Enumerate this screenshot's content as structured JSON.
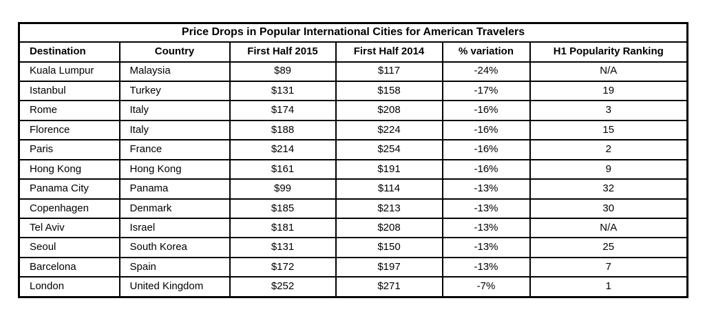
{
  "colors": {
    "background": "#ffffff",
    "border": "#000000",
    "text": "#000000"
  },
  "chart_data": {
    "type": "table",
    "title": "Price Drops in Popular International Cities for American Travelers",
    "columns": [
      "Destination",
      "Country",
      "First Half 2015",
      "First Half 2014",
      "% variation",
      "H1 Popularity Ranking"
    ],
    "rows": [
      [
        "Kuala Lumpur",
        "Malaysia",
        "$89",
        "$117",
        "-24%",
        "N/A"
      ],
      [
        "Istanbul",
        "Turkey",
        "$131",
        "$158",
        "-17%",
        "19"
      ],
      [
        "Rome",
        "Italy",
        "$174",
        "$208",
        "-16%",
        "3"
      ],
      [
        "Florence",
        "Italy",
        "$188",
        "$224",
        "-16%",
        "15"
      ],
      [
        "Paris",
        "France",
        "$214",
        "$254",
        "-16%",
        "2"
      ],
      [
        "Hong Kong",
        "Hong Kong",
        "$161",
        "$191",
        "-16%",
        "9"
      ],
      [
        "Panama City",
        "Panama",
        "$99",
        "$114",
        "-13%",
        "32"
      ],
      [
        "Copenhagen",
        "Denmark",
        "$185",
        "$213",
        "-13%",
        "30"
      ],
      [
        "Tel Aviv",
        "Israel",
        "$181",
        "$208",
        "-13%",
        "N/A"
      ],
      [
        "Seoul",
        "South Korea",
        "$131",
        "$150",
        "-13%",
        "25"
      ],
      [
        "Barcelona",
        "Spain",
        "$172",
        "$197",
        "-13%",
        "7"
      ],
      [
        "London",
        "United Kingdom",
        "$252",
        "$271",
        "-7%",
        "1"
      ]
    ]
  }
}
